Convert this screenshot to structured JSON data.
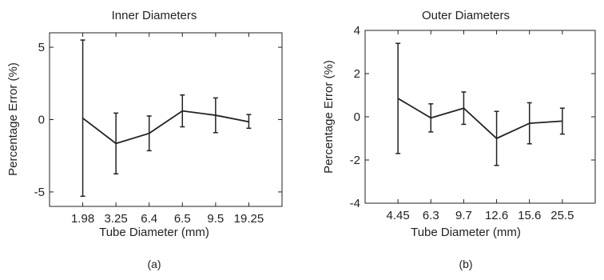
{
  "chart_data": [
    {
      "type": "line",
      "title": "Inner Diameters",
      "xlabel": "Tube Diameter (mm)",
      "ylabel": "Percentage Error (%)",
      "caption": "(a)",
      "categories": [
        "1.98",
        "3.25",
        "6.4",
        "6.5",
        "9.5",
        "19.25"
      ],
      "values": [
        0.1,
        -1.65,
        -0.95,
        0.6,
        0.3,
        -0.15
      ],
      "error_low": [
        -5.3,
        -3.75,
        -2.15,
        -0.5,
        -0.9,
        -0.6
      ],
      "error_high": [
        5.5,
        0.45,
        0.25,
        1.7,
        1.5,
        0.35
      ],
      "ylim": [
        -6,
        6
      ],
      "yticks": [
        -5,
        0,
        5
      ],
      "grid": false,
      "color": "#222222"
    },
    {
      "type": "line",
      "title": "Outer Diameters",
      "xlabel": "Tube Diameter (mm)",
      "ylabel": "Percentage Error (%)",
      "caption": "(b)",
      "categories": [
        "4.45",
        "6.3",
        "9.7",
        "12.6",
        "15.6",
        "25.5"
      ],
      "values": [
        0.85,
        -0.05,
        0.4,
        -1.0,
        -0.3,
        -0.2
      ],
      "error_low": [
        -1.7,
        -0.7,
        -0.35,
        -2.25,
        -1.25,
        -0.8
      ],
      "error_high": [
        3.4,
        0.6,
        1.15,
        0.25,
        0.65,
        0.4
      ],
      "ylim": [
        -4,
        4
      ],
      "yticks": [
        -4,
        -2,
        0,
        2,
        4
      ],
      "grid": false,
      "color": "#222222"
    }
  ]
}
